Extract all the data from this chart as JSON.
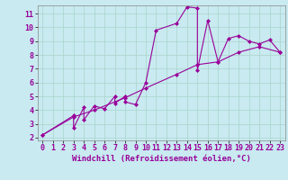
{
  "line1_x": [
    0,
    3,
    3,
    4,
    4,
    5,
    6,
    7,
    7,
    8,
    8,
    9,
    10,
    11,
    13,
    14,
    15,
    15,
    16,
    17,
    18,
    19,
    20,
    21,
    22,
    23
  ],
  "line1_y": [
    2.2,
    3.6,
    2.7,
    4.2,
    3.3,
    4.3,
    4.1,
    5.0,
    4.5,
    5.0,
    4.6,
    4.4,
    6.0,
    9.8,
    10.3,
    11.5,
    11.4,
    6.9,
    10.5,
    7.5,
    9.2,
    9.4,
    9.0,
    8.8,
    9.1,
    8.2
  ],
  "line2_x": [
    0,
    3,
    5,
    8,
    10,
    13,
    15,
    17,
    19,
    21,
    23
  ],
  "line2_y": [
    2.2,
    3.5,
    4.0,
    4.9,
    5.6,
    6.6,
    7.3,
    7.5,
    8.2,
    8.6,
    8.2
  ],
  "line_color": "#990099",
  "bg_color": "#c8eaf0",
  "grid_color": "#aad4cc",
  "xlim_min": -0.5,
  "xlim_max": 23.5,
  "ylim_min": 1.8,
  "ylim_max": 11.6,
  "xticks": [
    0,
    1,
    2,
    3,
    4,
    5,
    6,
    7,
    8,
    9,
    10,
    11,
    12,
    13,
    14,
    15,
    16,
    17,
    18,
    19,
    20,
    21,
    22,
    23
  ],
  "yticks": [
    2,
    3,
    4,
    5,
    6,
    7,
    8,
    9,
    10,
    11
  ],
  "xlabel": "Windchill (Refroidissement éolien,°C)",
  "xlabel_fontsize": 6.5,
  "tick_fontsize": 6,
  "marker": "D",
  "markersize": 2.0,
  "linewidth": 0.8
}
